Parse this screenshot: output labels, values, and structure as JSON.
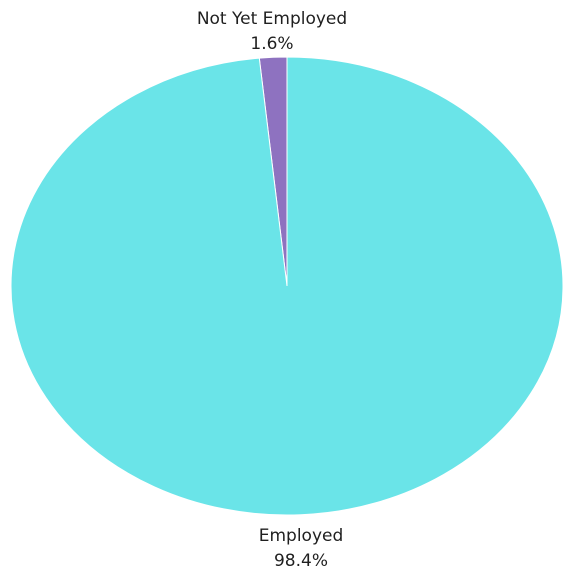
{
  "chart_data": {
    "type": "pie",
    "title": "",
    "slices": [
      {
        "label": "Not Yet Employed",
        "percent_label": "1.6%",
        "value": 1.6,
        "color": "#8e72c0"
      },
      {
        "label": "Employed",
        "percent_label": "98.4%",
        "value": 98.4,
        "color": "#6ae4e8"
      }
    ]
  }
}
